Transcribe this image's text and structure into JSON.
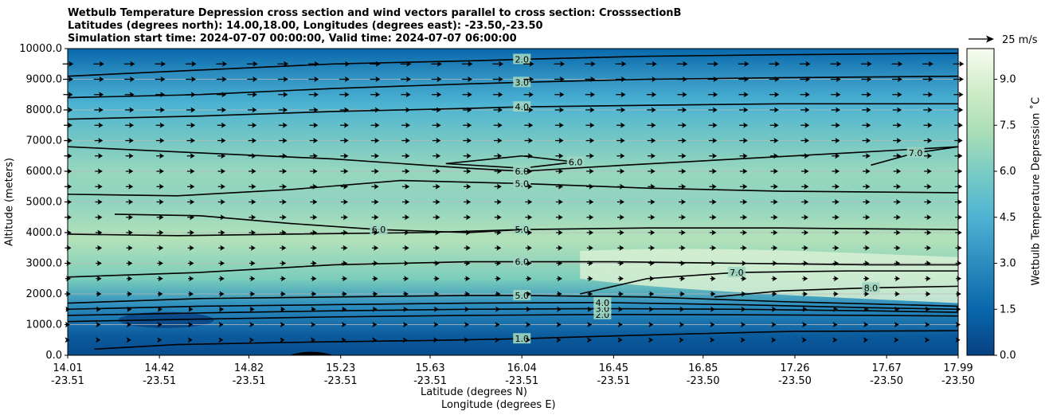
{
  "chart_data": {
    "type": "heatmap",
    "title_lines": [
      "Wetbulb Temperature Depression cross section and wind vectors parallel to cross section: CrosssectionB",
      "Latitudes (degrees north): 14.00,18.00, Longitudes (degrees east): -23.50,-23.50",
      "Simulation start time: 2024-07-07 00:00:00, Valid time: 2024-07-07 06:00:00"
    ],
    "xlabel_line1": "Latitude (degrees N)",
    "xlabel_line2": "Longitude (degrees E)",
    "ylabel": "Altitude (meters)",
    "colorbar_label": "Wetbulb Temperature Depression ˚C",
    "quiver_key_label": "25 m/s",
    "x_range": [
      14.01,
      17.99
    ],
    "ylim": [
      0,
      10000
    ],
    "y_ticks": [
      "0.0",
      "1000.0",
      "2000.0",
      "3000.0",
      "4000.0",
      "5000.0",
      "6000.0",
      "7000.0",
      "8000.0",
      "9000.0",
      "10000.0"
    ],
    "x_ticks": [
      {
        "lat": "14.01",
        "lon": "-23.51"
      },
      {
        "lat": "14.42",
        "lon": "-23.51"
      },
      {
        "lat": "14.82",
        "lon": "-23.51"
      },
      {
        "lat": "15.23",
        "lon": "-23.51"
      },
      {
        "lat": "15.63",
        "lon": "-23.51"
      },
      {
        "lat": "16.04",
        "lon": "-23.51"
      },
      {
        "lat": "16.45",
        "lon": "-23.51"
      },
      {
        "lat": "16.85",
        "lon": "-23.50"
      },
      {
        "lat": "17.26",
        "lon": "-23.50"
      },
      {
        "lat": "17.67",
        "lon": "-23.50"
      },
      {
        "lat": "17.99",
        "lon": "-23.50"
      }
    ],
    "colorbar_range": [
      0,
      10
    ],
    "colorbar_ticks": [
      "0.0",
      "1.5",
      "3.0",
      "4.5",
      "6.0",
      "7.5",
      "9.0"
    ],
    "grid": true,
    "contours": [
      {
        "level": 1.0,
        "label": "1.0",
        "points": [
          [
            14.13,
            200
          ],
          [
            14.5,
            350
          ],
          [
            15.0,
            420
          ],
          [
            15.6,
            480
          ],
          [
            16.04,
            540
          ],
          [
            16.3,
            600
          ],
          [
            16.8,
            700
          ],
          [
            17.26,
            780
          ],
          [
            17.99,
            800
          ]
        ]
      },
      {
        "level": 2.0,
        "label": "2.0",
        "points": [
          [
            14.01,
            1100
          ],
          [
            14.6,
            1180
          ],
          [
            15.2,
            1250
          ],
          [
            15.8,
            1300
          ],
          [
            16.4,
            1330
          ],
          [
            17.0,
            1320
          ],
          [
            17.6,
            1300
          ],
          [
            17.99,
            1280
          ]
        ]
      },
      {
        "level": 3.0,
        "label": "3.0",
        "points": [
          [
            14.01,
            1300
          ],
          [
            14.6,
            1380
          ],
          [
            15.2,
            1450
          ],
          [
            15.8,
            1500
          ],
          [
            16.4,
            1520
          ],
          [
            17.0,
            1500
          ],
          [
            17.6,
            1450
          ],
          [
            17.99,
            1400
          ]
        ]
      },
      {
        "level": 4.0,
        "label": "4.0",
        "points": [
          [
            14.01,
            1500
          ],
          [
            14.6,
            1600
          ],
          [
            15.2,
            1650
          ],
          [
            15.8,
            1700
          ],
          [
            16.4,
            1720
          ],
          [
            17.0,
            1650
          ],
          [
            17.6,
            1550
          ],
          [
            17.99,
            1500
          ]
        ]
      },
      {
        "level": 5.0,
        "label": "5.0",
        "points": [
          [
            14.01,
            1700
          ],
          [
            14.6,
            1850
          ],
          [
            15.2,
            1900
          ],
          [
            15.8,
            1950
          ],
          [
            16.04,
            1950
          ],
          [
            16.6,
            1900
          ],
          [
            17.2,
            1750
          ],
          [
            17.99,
            1600
          ]
        ]
      },
      {
        "level": 6.0,
        "label": "6.0",
        "points": [
          [
            14.01,
            2550
          ],
          [
            14.6,
            2700
          ],
          [
            15.2,
            2950
          ],
          [
            15.8,
            3050
          ],
          [
            16.04,
            3050
          ],
          [
            16.45,
            3050
          ],
          [
            17.0,
            3000
          ],
          [
            17.6,
            2950
          ],
          [
            17.99,
            2950
          ]
        ]
      },
      {
        "level": 7.0,
        "label": "7.0",
        "points": [
          [
            16.3,
            2000
          ],
          [
            16.6,
            2500
          ],
          [
            17.0,
            2700
          ],
          [
            17.5,
            2750
          ],
          [
            17.99,
            2750
          ]
        ]
      },
      {
        "level": 8.0,
        "label": "8.0",
        "points": [
          [
            16.9,
            1900
          ],
          [
            17.2,
            2100
          ],
          [
            17.6,
            2200
          ],
          [
            17.99,
            2250
          ]
        ]
      },
      {
        "level": 5.0,
        "label": "5.0",
        "points": [
          [
            14.01,
            3950
          ],
          [
            14.5,
            3900
          ],
          [
            15.0,
            3950
          ],
          [
            15.6,
            4000
          ],
          [
            16.04,
            4100
          ],
          [
            16.6,
            4150
          ],
          [
            17.2,
            4150
          ],
          [
            17.99,
            4100
          ]
        ]
      },
      {
        "level": 6.0,
        "label": "6.0",
        "points": [
          [
            14.22,
            4600
          ],
          [
            14.6,
            4550
          ],
          [
            15.0,
            4300
          ],
          [
            15.4,
            4100
          ],
          [
            15.8,
            4000
          ],
          [
            16.04,
            4100
          ]
        ]
      },
      {
        "level": 5.0,
        "label": "5.0",
        "points": [
          [
            14.01,
            5250
          ],
          [
            14.5,
            5200
          ],
          [
            15.0,
            5400
          ],
          [
            15.5,
            5700
          ],
          [
            16.04,
            5600
          ],
          [
            16.6,
            5450
          ],
          [
            17.2,
            5350
          ],
          [
            17.99,
            5300
          ]
        ]
      },
      {
        "level": 6.0,
        "label": "6.0",
        "points": [
          [
            15.7,
            6250
          ],
          [
            16.04,
            6500
          ],
          [
            16.28,
            6300
          ],
          [
            16.04,
            6100
          ],
          [
            15.7,
            6250
          ]
        ]
      },
      {
        "level": 6.0,
        "label": "6.0",
        "points": [
          [
            14.01,
            6800
          ],
          [
            14.6,
            6600
          ],
          [
            15.2,
            6400
          ],
          [
            15.8,
            6100
          ],
          [
            16.04,
            6000
          ],
          [
            16.5,
            6200
          ],
          [
            17.0,
            6400
          ],
          [
            17.5,
            6600
          ],
          [
            17.99,
            6800
          ]
        ]
      },
      {
        "level": 7.0,
        "label": "7.0",
        "points": [
          [
            17.6,
            6200
          ],
          [
            17.8,
            6600
          ],
          [
            17.99,
            6800
          ]
        ]
      },
      {
        "level": 4.0,
        "label": "4.0",
        "points": [
          [
            14.01,
            7700
          ],
          [
            14.6,
            7800
          ],
          [
            15.2,
            7950
          ],
          [
            15.8,
            8050
          ],
          [
            16.04,
            8100
          ],
          [
            16.6,
            8150
          ],
          [
            17.2,
            8200
          ],
          [
            17.99,
            8200
          ]
        ]
      },
      {
        "level": 3.0,
        "label": "3.0",
        "points": [
          [
            14.01,
            8400
          ],
          [
            14.6,
            8500
          ],
          [
            15.2,
            8700
          ],
          [
            15.8,
            8850
          ],
          [
            16.04,
            8900
          ],
          [
            16.6,
            9000
          ],
          [
            17.2,
            9050
          ],
          [
            17.99,
            9100
          ]
        ]
      },
      {
        "level": 2.0,
        "label": "2.0",
        "points": [
          [
            14.01,
            9100
          ],
          [
            14.6,
            9300
          ],
          [
            15.2,
            9500
          ],
          [
            15.8,
            9600
          ],
          [
            16.04,
            9650
          ],
          [
            16.6,
            9750
          ],
          [
            17.2,
            9800
          ],
          [
            17.99,
            9850
          ]
        ]
      }
    ],
    "wind_grid": {
      "lat_start": 14.01,
      "lat_end": 17.99,
      "columns": 30,
      "alt_start": 0,
      "alt_end": 10000,
      "rows": 21,
      "speed_by_alt": [
        [
          0,
          3
        ],
        [
          1000,
          4
        ],
        [
          2000,
          6
        ],
        [
          4000,
          8
        ],
        [
          6000,
          9
        ],
        [
          8000,
          11
        ],
        [
          10000,
          14
        ]
      ]
    }
  }
}
